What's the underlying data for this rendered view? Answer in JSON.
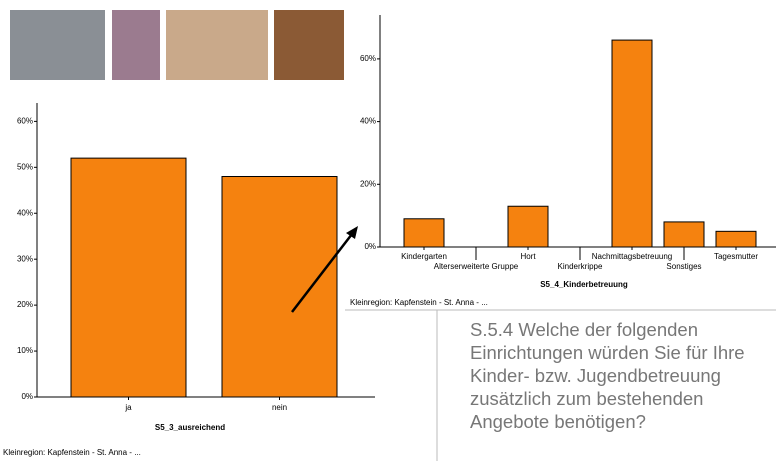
{
  "caption": "S.5.4 Welche der folgenden Einrichtungen würden Sie für Ihre Kinder- bzw. Jugendbetreuung zusätzlich zum bestehenden Angebote benötigen?",
  "chart_data": [
    {
      "type": "bar",
      "categories": [
        "ja",
        "nein"
      ],
      "values": [
        52,
        48
      ],
      "color": "#f5820f",
      "x_label": "S5_3_ausreichend",
      "footnote": "Kleinregion: Kapfenstein - St. Anna - ...",
      "ylim": [
        0,
        64
      ],
      "yticks": [
        {
          "value": 0,
          "label": "0%"
        },
        {
          "value": 10,
          "label": "10%"
        },
        {
          "value": 20,
          "label": "20%"
        },
        {
          "value": 30,
          "label": "30%"
        },
        {
          "value": 40,
          "label": "40%"
        },
        {
          "value": 50,
          "label": "50%"
        },
        {
          "value": 60,
          "label": "60%"
        }
      ]
    },
    {
      "type": "bar",
      "categories": [
        "Kindergarten",
        "Alterserweiterte Gruppe",
        "Hort",
        "Kinderkrippe",
        "Nachmittagsbetreuung",
        "Sonstiges",
        "Tagesmutter"
      ],
      "values": [
        9,
        0,
        13,
        0,
        66,
        8,
        5
      ],
      "color": "#f5820f",
      "x_label": "S5_4_Kinderbetreuung",
      "footnote": "Kleinregion: Kapfenstein - St. Anna - ...",
      "ylim": [
        0,
        74
      ],
      "yticks": [
        {
          "value": 0,
          "label": "0%"
        },
        {
          "value": 20,
          "label": "20%"
        },
        {
          "value": 40,
          "label": "40%"
        },
        {
          "value": 60,
          "label": "60%"
        }
      ]
    }
  ]
}
